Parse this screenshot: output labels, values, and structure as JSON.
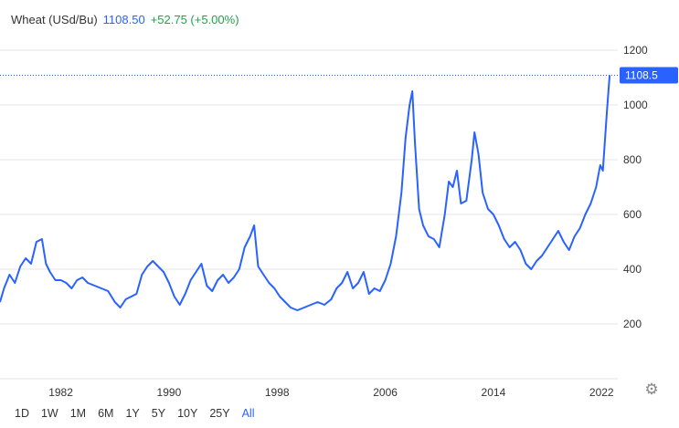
{
  "header": {
    "symbol": "Wheat (USd/Bu)",
    "price": "1108.50",
    "change": "+52.75 (+5.00%)"
  },
  "last_price_label": "1108.5",
  "range_buttons": [
    {
      "label": "1D",
      "active": false
    },
    {
      "label": "1W",
      "active": false
    },
    {
      "label": "1M",
      "active": false
    },
    {
      "label": "6M",
      "active": false
    },
    {
      "label": "1Y",
      "active": false
    },
    {
      "label": "5Y",
      "active": false
    },
    {
      "label": "10Y",
      "active": false
    },
    {
      "label": "25Y",
      "active": false
    },
    {
      "label": "All",
      "active": true
    }
  ],
  "settings_icon": "gear-icon",
  "colors": {
    "line": "#2962ff",
    "grid": "#e6e6e6",
    "price_label_bg": "#2962ff",
    "change_positive": "#21a34a"
  },
  "chart_data": {
    "type": "line",
    "title": "",
    "xlabel": "",
    "ylabel": "",
    "y_ticks": [
      200,
      400,
      600,
      800,
      1000,
      1200
    ],
    "x_ticks": [
      1982,
      1990,
      1998,
      2006,
      2014,
      2022
    ],
    "xlim": [
      1977.5,
      2023.2
    ],
    "ylim": [
      0,
      1260
    ],
    "grid": "horizontal",
    "last_value": 1108.5,
    "series": [
      {
        "name": "",
        "x": [
          1977.5,
          1977.8,
          1978.2,
          1978.6,
          1979.0,
          1979.4,
          1979.8,
          1980.2,
          1980.6,
          1980.9,
          1981.2,
          1981.6,
          1982.0,
          1982.4,
          1982.8,
          1983.2,
          1983.6,
          1984.0,
          1984.5,
          1985.0,
          1985.5,
          1986.0,
          1986.4,
          1986.8,
          1987.2,
          1987.6,
          1988.0,
          1988.4,
          1988.8,
          1989.2,
          1989.6,
          1990.0,
          1990.4,
          1990.8,
          1991.2,
          1991.6,
          1992.0,
          1992.4,
          1992.8,
          1993.2,
          1993.6,
          1994.0,
          1994.4,
          1994.8,
          1995.2,
          1995.6,
          1996.0,
          1996.3,
          1996.6,
          1997.0,
          1997.4,
          1997.8,
          1998.2,
          1998.6,
          1999.0,
          1999.5,
          2000.0,
          2000.5,
          2001.0,
          2001.5,
          2002.0,
          2002.4,
          2002.8,
          2003.2,
          2003.6,
          2004.0,
          2004.4,
          2004.8,
          2005.2,
          2005.6,
          2006.0,
          2006.4,
          2006.8,
          2007.2,
          2007.5,
          2007.8,
          2008.0,
          2008.2,
          2008.5,
          2008.8,
          2009.2,
          2009.6,
          2010.0,
          2010.4,
          2010.7,
          2011.0,
          2011.3,
          2011.6,
          2012.0,
          2012.4,
          2012.6,
          2012.9,
          2013.2,
          2013.6,
          2014.0,
          2014.4,
          2014.8,
          2015.2,
          2015.6,
          2016.0,
          2016.4,
          2016.8,
          2017.2,
          2017.6,
          2018.0,
          2018.4,
          2018.8,
          2019.2,
          2019.6,
          2020.0,
          2020.4,
          2020.8,
          2021.2,
          2021.6,
          2021.9,
          2022.1,
          2022.4,
          2022.6
        ],
        "y": [
          280,
          330,
          380,
          350,
          410,
          440,
          420,
          500,
          510,
          420,
          390,
          360,
          360,
          350,
          330,
          360,
          370,
          350,
          340,
          330,
          320,
          280,
          260,
          290,
          300,
          310,
          380,
          410,
          430,
          410,
          390,
          350,
          300,
          270,
          310,
          360,
          390,
          420,
          340,
          320,
          360,
          380,
          350,
          370,
          400,
          480,
          520,
          560,
          410,
          380,
          350,
          330,
          300,
          280,
          260,
          250,
          260,
          270,
          280,
          270,
          290,
          330,
          350,
          390,
          330,
          350,
          390,
          310,
          330,
          320,
          360,
          420,
          520,
          680,
          880,
          1000,
          1050,
          860,
          620,
          560,
          520,
          510,
          480,
          600,
          720,
          700,
          760,
          640,
          650,
          800,
          900,
          820,
          680,
          620,
          600,
          560,
          510,
          480,
          500,
          470,
          420,
          400,
          430,
          450,
          480,
          510,
          540,
          500,
          470,
          520,
          550,
          600,
          640,
          700,
          780,
          760,
          980,
          1108.5
        ]
      }
    ]
  }
}
